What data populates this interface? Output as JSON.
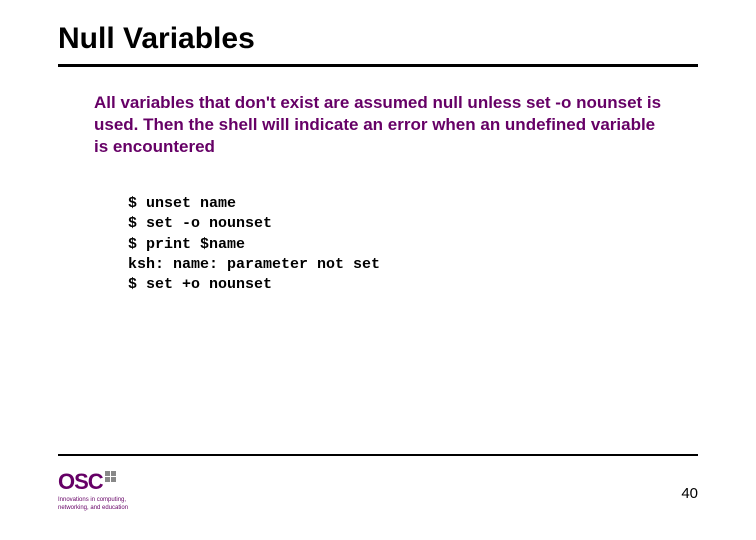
{
  "title": "Null Variables",
  "body": "All variables that don't exist are assumed null unless set -o nounset is used. Then the shell will indicate an error when an undefined variable is encountered",
  "code": "$ unset name\n$ set -o nounset\n$ print $name\nksh: name: parameter not set\n$ set +o nounset",
  "logo": {
    "text": "OSC",
    "sub1": "Innovations in computing,",
    "sub2": "networking, and education"
  },
  "page_number": "40",
  "colors": {
    "accent": "#660066",
    "text": "#000000",
    "background": "#ffffff"
  },
  "typography": {
    "title_fontsize": 30,
    "body_fontsize": 17,
    "code_fontsize": 15,
    "code_font": "Courier New",
    "body_font": "Arial"
  }
}
